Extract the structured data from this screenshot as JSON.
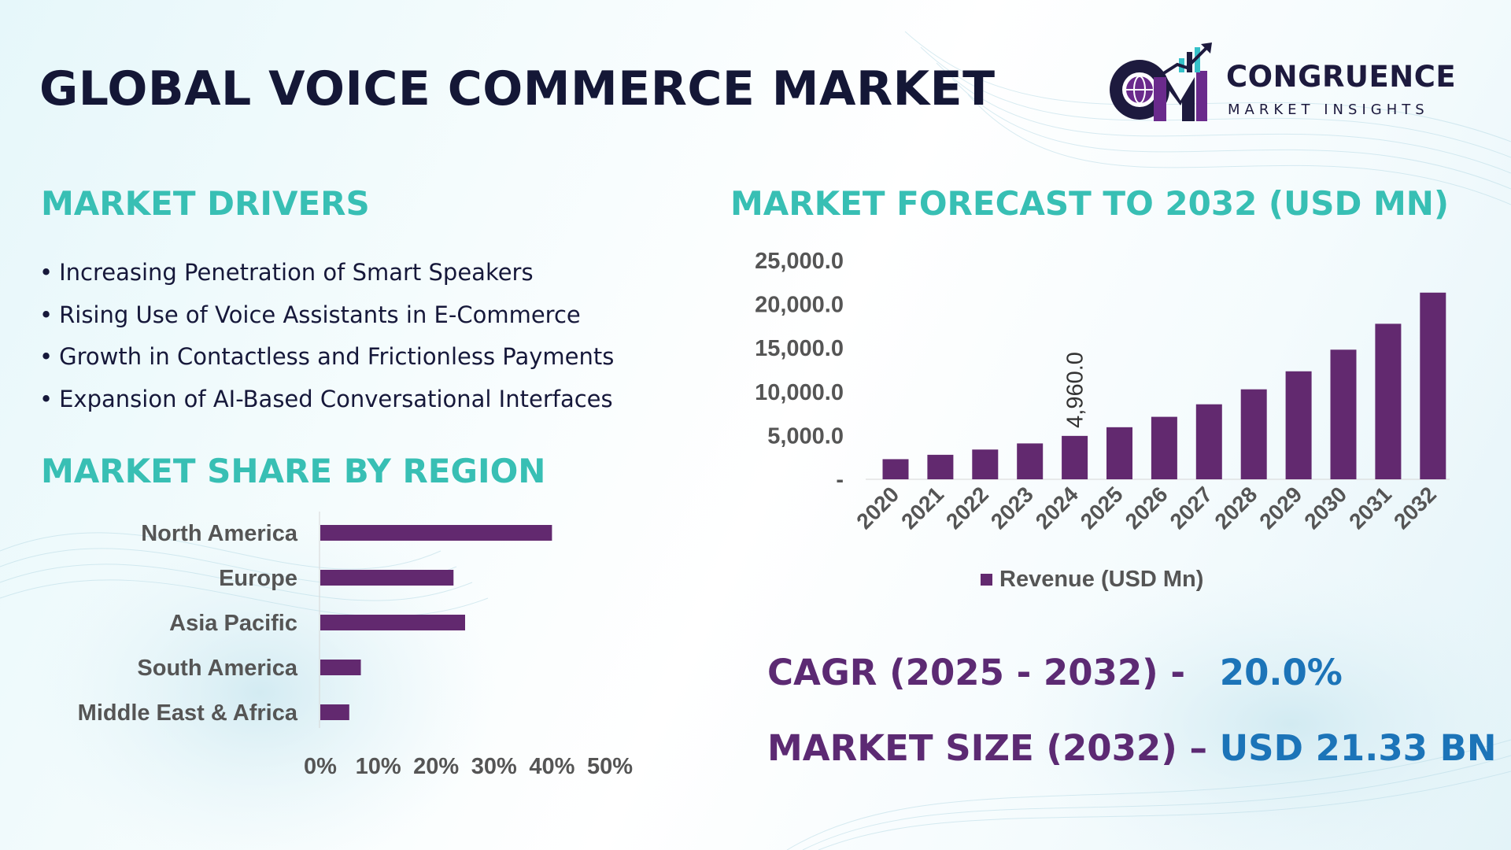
{
  "title": "GLOBAL VOICE COMMERCE MARKET",
  "logo": {
    "name": "CONGRUENCE",
    "tagline": "MARKET INSIGHTS",
    "mark_letters": "CM",
    "colors": {
      "dark": "#1d1a3e",
      "purple": "#6a2a8c",
      "teal": "#36c1c9"
    }
  },
  "drivers": {
    "heading": "MARKET DRIVERS",
    "bullet": "•",
    "items": [
      "Increasing Penetration of Smart Speakers",
      "Rising Use of Voice Assistants in E-Commerce",
      "Growth in Contactless and Frictionless Payments",
      "Expansion of AI-Based Conversational Interfaces"
    ]
  },
  "region": {
    "heading": "MARKET SHARE BY REGION"
  },
  "forecast": {
    "heading": "MARKET FORECAST TO 2032 (USD MN)"
  },
  "stats": {
    "cagr_label": "CAGR (2025 - 2032) -",
    "cagr_value": "20.0%",
    "size_label": "MARKET SIZE (2032) –",
    "size_value": "USD 21.33 BN"
  },
  "colors": {
    "bar": "#62296f",
    "heading_teal": "#38bfb4",
    "title_dark": "#141736",
    "stat_purple": "#5c2a73",
    "stat_blue": "#1c74b8",
    "axis_text": "#555555"
  },
  "chart_data": [
    {
      "type": "bar",
      "orientation": "horizontal",
      "categories": [
        "North America",
        "Europe",
        "Asia Pacific",
        "South America",
        "Middle East & Africa"
      ],
      "values": [
        40,
        23,
        25,
        7,
        5
      ],
      "xlim": [
        0,
        50
      ],
      "xticks": [
        "0%",
        "10%",
        "20%",
        "30%",
        "40%",
        "50%"
      ],
      "grid": false,
      "legend": "none"
    },
    {
      "type": "bar",
      "categories": [
        "2020",
        "2021",
        "2022",
        "2023",
        "2024",
        "2025",
        "2026",
        "2027",
        "2028",
        "2029",
        "2030",
        "2031",
        "2032"
      ],
      "series": [
        {
          "name": "Revenue (USD Mn)",
          "values": [
            2300,
            2800,
            3400,
            4100,
            4960,
            5950,
            7140,
            8570,
            10280,
            12340,
            14810,
            17770,
            21330
          ]
        }
      ],
      "ylim": [
        0,
        25000
      ],
      "yticks": [
        "-",
        "5,000.0",
        "10,000.0",
        "15,000.0",
        "20,000.0",
        "25,000.0"
      ],
      "data_labels": [
        {
          "category": "2024",
          "text": "4,960.0"
        }
      ],
      "grid": false,
      "legend": "bottom"
    }
  ]
}
